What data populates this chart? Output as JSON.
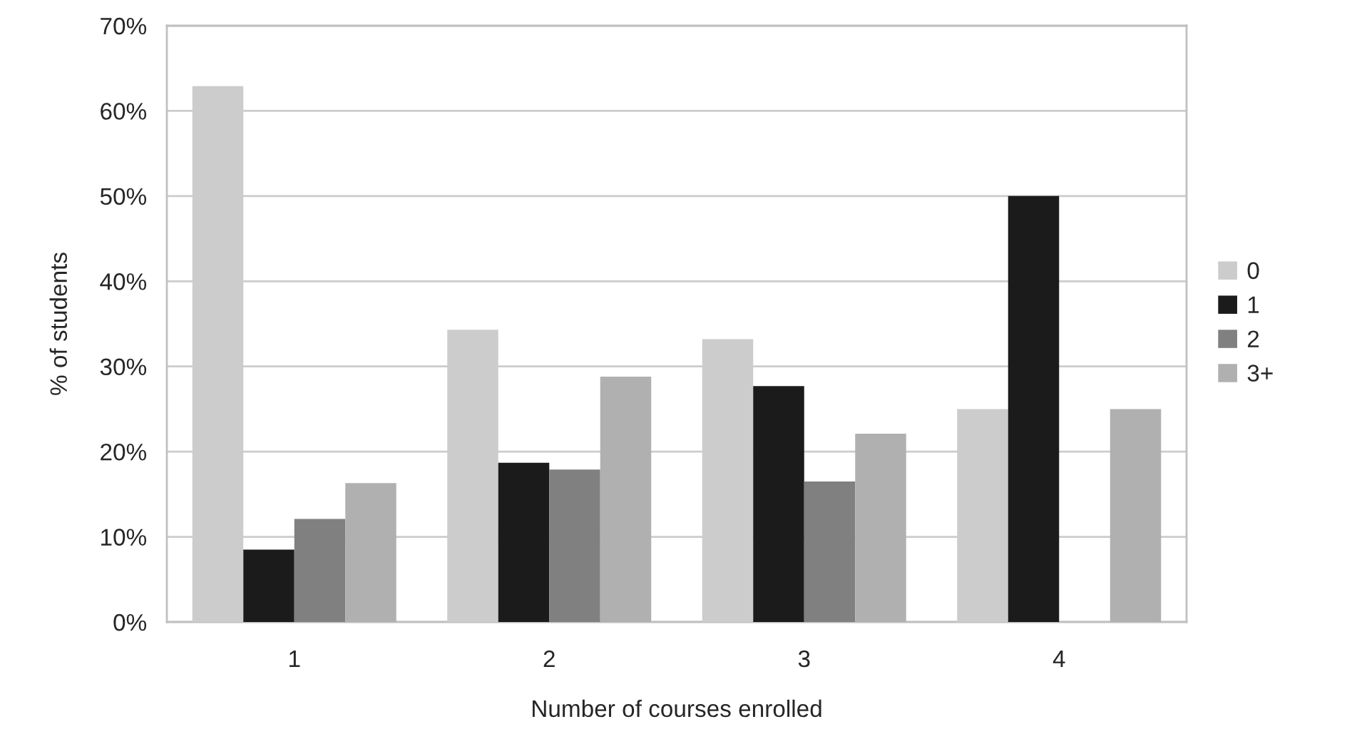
{
  "chart_data": {
    "type": "bar",
    "xlabel": "Number of courses enrolled",
    "ylabel": "% of students",
    "categories": [
      "1",
      "2",
      "3",
      "4"
    ],
    "series": [
      {
        "name": "0",
        "color": "#cccccc",
        "values": [
          62.9,
          34.3,
          33.2,
          25
        ]
      },
      {
        "name": "1",
        "color": "#1b1b1b",
        "values": [
          8.5,
          18.7,
          27.7,
          50
        ]
      },
      {
        "name": "2",
        "color": "#808080",
        "values": [
          12.1,
          17.9,
          16.5,
          0
        ]
      },
      {
        "name": "3+",
        "color": "#b0b0b0",
        "values": [
          16.3,
          28.8,
          22.1,
          25
        ]
      }
    ],
    "ylim": [
      0,
      70
    ],
    "yticks": [
      {
        "value": 0,
        "label": "0%"
      },
      {
        "value": 10,
        "label": "10%"
      },
      {
        "value": 20,
        "label": "20%"
      },
      {
        "value": 30,
        "label": "30%"
      },
      {
        "value": 40,
        "label": "40%"
      },
      {
        "value": 50,
        "label": "50%"
      },
      {
        "value": 60,
        "label": "60%"
      },
      {
        "value": 70,
        "label": "70%"
      }
    ],
    "grid": "y",
    "legend": "right"
  }
}
